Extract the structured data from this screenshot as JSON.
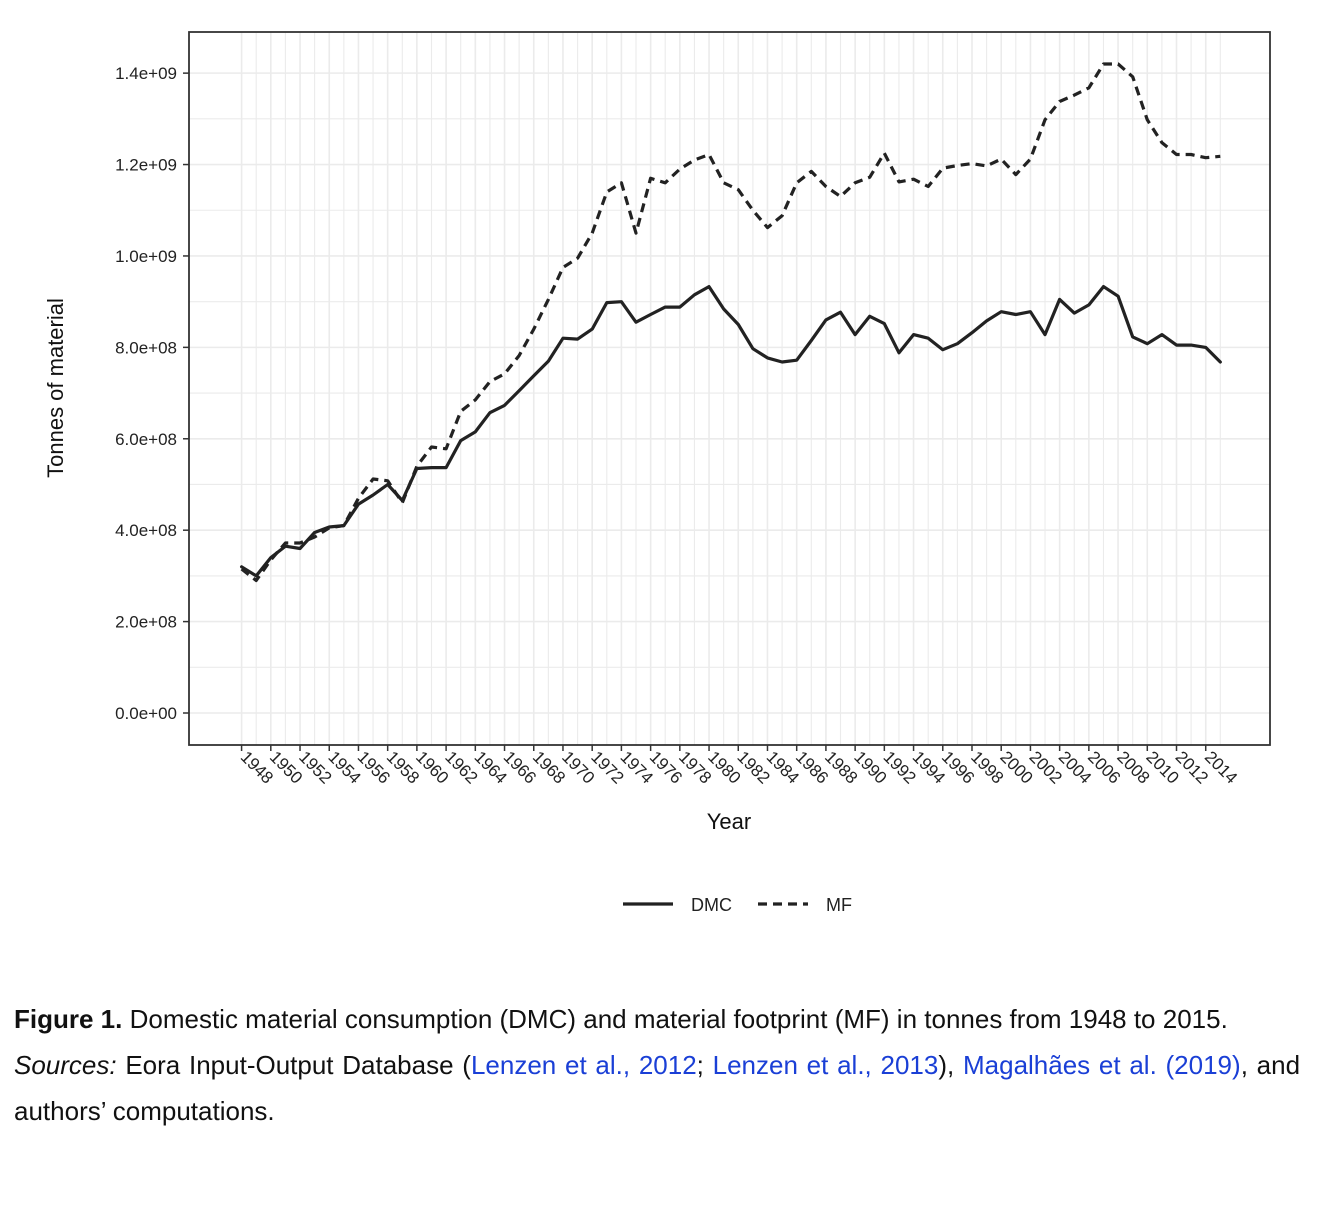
{
  "chart_data": {
    "type": "line",
    "xlabel": "Year",
    "ylabel": "Tonnes of material",
    "x_ticks": [
      1948,
      1950,
      1952,
      1954,
      1956,
      1958,
      1960,
      1962,
      1964,
      1966,
      1968,
      1970,
      1972,
      1974,
      1976,
      1978,
      1980,
      1982,
      1984,
      1986,
      1988,
      1990,
      1992,
      1994,
      1996,
      1998,
      2000,
      2002,
      2004,
      2006,
      2008,
      2010,
      2012,
      2014
    ],
    "y_ticks": [
      "0.0e+00",
      "2.0e+08",
      "4.0e+08",
      "6.0e+08",
      "8.0e+08",
      "1.0e+09",
      "1.2e+09",
      "1.4e+09"
    ],
    "ylim": [
      -70000000,
      1490000000
    ],
    "xlim": [
      1944.4,
      2018.4
    ],
    "grid": true,
    "legend_position": "bottom",
    "x": [
      1948,
      1949,
      1950,
      1951,
      1952,
      1953,
      1954,
      1955,
      1956,
      1957,
      1958,
      1959,
      1960,
      1961,
      1962,
      1963,
      1964,
      1965,
      1966,
      1967,
      1968,
      1969,
      1970,
      1971,
      1972,
      1973,
      1974,
      1975,
      1976,
      1977,
      1978,
      1979,
      1980,
      1981,
      1982,
      1983,
      1984,
      1985,
      1986,
      1987,
      1988,
      1989,
      1990,
      1991,
      1992,
      1993,
      1994,
      1995,
      1996,
      1997,
      1998,
      1999,
      2000,
      2001,
      2002,
      2003,
      2004,
      2005,
      2006,
      2007,
      2008,
      2009,
      2010,
      2011,
      2012,
      2013,
      2014,
      2015
    ],
    "series": [
      {
        "name": "DMC",
        "style": "solid",
        "color": "#222222",
        "values": [
          320000000,
          300000000,
          340000000,
          365000000,
          360000000,
          395000000,
          407000000,
          410000000,
          457000000,
          477000000,
          500000000,
          465000000,
          535000000,
          537000000,
          537000000,
          596000000,
          615000000,
          657000000,
          673000000,
          705000000,
          738000000,
          770000000,
          820000000,
          818000000,
          840000000,
          898000000,
          900000000,
          855000000,
          872000000,
          888000000,
          888000000,
          915000000,
          933000000,
          884000000,
          850000000,
          797000000,
          777000000,
          768000000,
          772000000,
          815000000,
          860000000,
          877000000,
          828000000,
          868000000,
          852000000,
          788000000,
          828000000,
          820000000,
          795000000,
          808000000,
          832000000,
          858000000,
          878000000,
          872000000,
          878000000,
          828000000,
          905000000,
          875000000,
          893000000,
          933000000,
          912000000,
          823000000,
          808000000,
          828000000,
          805000000,
          805000000,
          800000000,
          768000000
        ]
      },
      {
        "name": "MF",
        "style": "dashed",
        "color": "#222222",
        "values": [
          315000000,
          290000000,
          335000000,
          372000000,
          372000000,
          385000000,
          405000000,
          410000000,
          470000000,
          512000000,
          508000000,
          460000000,
          540000000,
          582000000,
          578000000,
          660000000,
          685000000,
          725000000,
          742000000,
          782000000,
          840000000,
          905000000,
          975000000,
          995000000,
          1050000000,
          1140000000,
          1160000000,
          1050000000,
          1170000000,
          1160000000,
          1190000000,
          1210000000,
          1222000000,
          1160000000,
          1145000000,
          1100000000,
          1062000000,
          1088000000,
          1160000000,
          1185000000,
          1152000000,
          1130000000,
          1160000000,
          1172000000,
          1225000000,
          1162000000,
          1168000000,
          1152000000,
          1192000000,
          1198000000,
          1202000000,
          1197000000,
          1212000000,
          1178000000,
          1212000000,
          1298000000,
          1338000000,
          1352000000,
          1368000000,
          1420000000,
          1420000000,
          1392000000,
          1298000000,
          1248000000,
          1222000000,
          1222000000,
          1215000000,
          1218000000
        ]
      }
    ]
  },
  "caption": {
    "label": "Figure 1.",
    "text": " Domestic material consumption (DMC) and material footprint (MF) in tonnes from 1948 to 2015.",
    "sources_label": "Sources:",
    "sources_text_1": " Eora Input-Output Database (",
    "link_1": "Lenzen et al., 2012",
    "sources_text_2": "; ",
    "link_2": "Lenzen et al., 2013",
    "sources_text_3": "), ",
    "link_3": "Magalhães et al. (2019)",
    "sources_text_4": ", and authors’ computations."
  },
  "colors": {
    "link": "#1a3fd6",
    "grid": "#ebebeb",
    "line": "#222222"
  }
}
